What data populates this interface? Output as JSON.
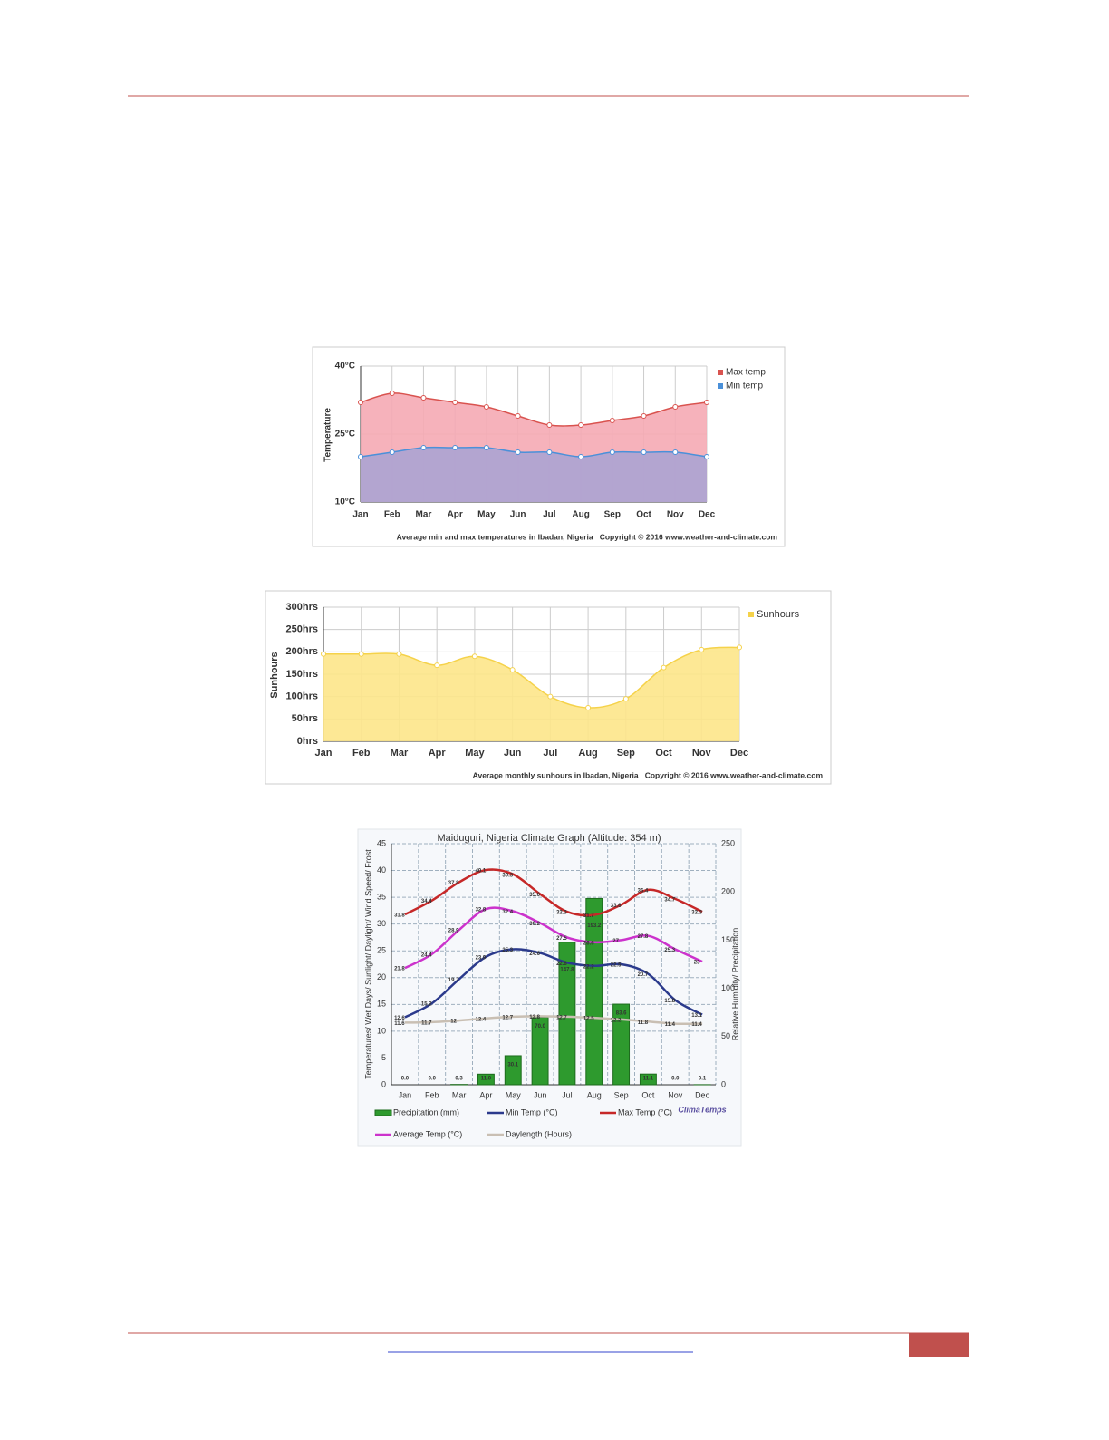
{
  "chart_data": [
    {
      "type": "area",
      "ylabel": "Temperature",
      "caption": "Average min and max temperatures in Ibadan, Nigeria   Copyright © 2016 www.weather-and-climate.com",
      "categories": [
        "Jan",
        "Feb",
        "Mar",
        "Apr",
        "May",
        "Jun",
        "Jul",
        "Aug",
        "Sep",
        "Oct",
        "Nov",
        "Dec"
      ],
      "ylim": [
        10,
        40
      ],
      "yticks": [
        {
          "value": 10,
          "label": "10°C"
        },
        {
          "value": 25,
          "label": "25°C"
        },
        {
          "value": 40,
          "label": "40°C"
        }
      ],
      "grid": true,
      "series": [
        {
          "name": "Max temp",
          "color": "#d9534f",
          "fill": "#f5aab4",
          "values": [
            32,
            34,
            33,
            32,
            31,
            29,
            27,
            27,
            28,
            29,
            31,
            32
          ]
        },
        {
          "name": "Min temp",
          "color": "#4a90d9",
          "fill": "#aca3d3",
          "values": [
            20,
            21,
            22,
            22,
            22,
            21,
            21,
            20,
            21,
            21,
            21,
            20
          ]
        }
      ]
    },
    {
      "type": "area",
      "ylabel": "Sunhours",
      "caption": "Average monthly sunhours in Ibadan, Nigeria   Copyright © 2016 www.weather-and-climate.com",
      "categories": [
        "Jan",
        "Feb",
        "Mar",
        "Apr",
        "May",
        "Jun",
        "Jul",
        "Aug",
        "Sep",
        "Oct",
        "Nov",
        "Dec"
      ],
      "ylim": [
        0,
        300
      ],
      "yticks": [
        {
          "value": 0,
          "label": "0hrs"
        },
        {
          "value": 50,
          "label": "50hrs"
        },
        {
          "value": 100,
          "label": "100hrs"
        },
        {
          "value": 150,
          "label": "150hrs"
        },
        {
          "value": 200,
          "label": "200hrs"
        },
        {
          "value": 250,
          "label": "250hrs"
        },
        {
          "value": 300,
          "label": "300hrs"
        }
      ],
      "grid": true,
      "series": [
        {
          "name": "Sunhours",
          "color": "#f5d24a",
          "fill": "#fde68a",
          "values": [
            195,
            195,
            195,
            170,
            190,
            160,
            100,
            75,
            95,
            165,
            205,
            210
          ]
        }
      ]
    },
    {
      "type": "combo",
      "title": "Maiduguri, Nigeria Climate Graph (Altitude: 354 m)",
      "ylabel": "Temperatures/ Wet Days/ Sunlight/ Daylight/ Wind Speed/ Frost",
      "y2label": "Relative Humidity/ Precipitation",
      "watermark": "ClimaTemps",
      "categories": [
        "Jan",
        "Feb",
        "Mar",
        "Apr",
        "May",
        "Jun",
        "Jul",
        "Aug",
        "Sep",
        "Oct",
        "Nov",
        "Dec"
      ],
      "ylim": [
        0,
        45
      ],
      "yticks": [
        0,
        5,
        10,
        15,
        20,
        25,
        30,
        35,
        40,
        45
      ],
      "y2lim": [
        0,
        250
      ],
      "y2ticks": [
        0,
        50,
        100,
        150,
        200,
        250
      ],
      "grid": true,
      "series": [
        {
          "name": "Precipitation (mm)",
          "type": "bar",
          "axis": "y2",
          "color": "#2e9a2e",
          "values": [
            0,
            0,
            0.3,
            11,
            30.1,
            70,
            147.8,
            193.2,
            83.6,
            11.1,
            0,
            0.1
          ],
          "value_labels": [
            "0.0",
            "0.0",
            "0.3",
            "11.0",
            "30.1",
            "70.0",
            "147.8",
            "193.2",
            "83.6",
            "11.1",
            "0.0",
            "0.1"
          ]
        },
        {
          "name": "Min Temp (°C)",
          "type": "line",
          "color": "#2b3a8c",
          "values": [
            12.6,
            15.2,
            19.7,
            23.9,
            25.3,
            24.6,
            22.8,
            22.2,
            22.5,
            20.7,
            15.8,
            13.1
          ]
        },
        {
          "name": "Max Temp (°C)",
          "type": "line",
          "color": "#c62828",
          "values": [
            31.8,
            34.4,
            37.8,
            40.1,
            39.3,
            35.6,
            32.3,
            31.7,
            33.6,
            36.4,
            34.7,
            32.3
          ]
        },
        {
          "name": "Average Temp (°C)",
          "type": "line",
          "color": "#cc33cc",
          "values": [
            21.8,
            24.4,
            28.9,
            32.8,
            32.4,
            30.2,
            27.5,
            26.6,
            27,
            27.8,
            25.3,
            23
          ]
        },
        {
          "name": "Daylength (Hours)",
          "type": "line",
          "color": "#c9bfb3",
          "values": [
            11.6,
            11.7,
            12,
            12.4,
            12.7,
            12.8,
            12.7,
            12.5,
            12.2,
            11.8,
            11.4,
            11.4
          ]
        }
      ]
    }
  ]
}
